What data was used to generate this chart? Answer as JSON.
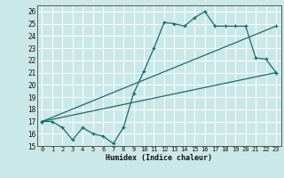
{
  "xlabel": "Humidex (Indice chaleur)",
  "bg_color": "#cbe8e8",
  "grid_color": "#ffffff",
  "line_color": "#1a6b6b",
  "xlim": [
    -0.5,
    23.5
  ],
  "ylim": [
    15,
    26.5
  ],
  "yticks": [
    15,
    16,
    17,
    18,
    19,
    20,
    21,
    22,
    23,
    24,
    25,
    26
  ],
  "xticks": [
    0,
    1,
    2,
    3,
    4,
    5,
    6,
    7,
    8,
    9,
    10,
    11,
    12,
    13,
    14,
    15,
    16,
    17,
    18,
    19,
    20,
    21,
    22,
    23
  ],
  "line1_x": [
    0,
    1,
    2,
    3,
    4,
    5,
    6,
    7,
    8,
    9,
    10,
    11,
    12,
    13,
    14,
    15,
    16,
    17,
    18,
    19,
    20,
    21,
    22,
    23
  ],
  "line1_y": [
    17.0,
    17.0,
    16.5,
    15.5,
    16.5,
    16.0,
    15.8,
    15.2,
    16.5,
    19.3,
    21.1,
    23.0,
    25.1,
    25.0,
    24.8,
    25.5,
    26.0,
    24.8,
    24.8,
    24.8,
    24.8,
    22.2,
    22.1,
    21.0
  ],
  "line2_x": [
    0,
    23
  ],
  "line2_y": [
    17.0,
    21.0
  ],
  "line3_x": [
    0,
    23
  ],
  "line3_y": [
    17.0,
    24.8
  ]
}
